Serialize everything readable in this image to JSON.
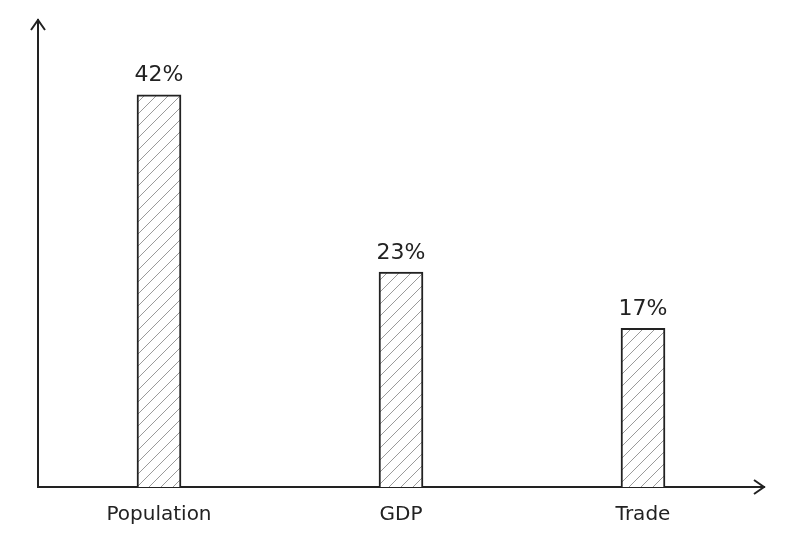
{
  "chart_data": {
    "type": "bar",
    "categories": [
      "Population",
      "GDP",
      "Trade"
    ],
    "values": [
      42,
      23,
      17
    ],
    "value_labels": [
      "42%",
      "23%",
      "17%"
    ],
    "data_labels": true,
    "color": "#222222",
    "ylim": [
      0,
      50
    ],
    "grid": false,
    "tick_labels": "x"
  }
}
